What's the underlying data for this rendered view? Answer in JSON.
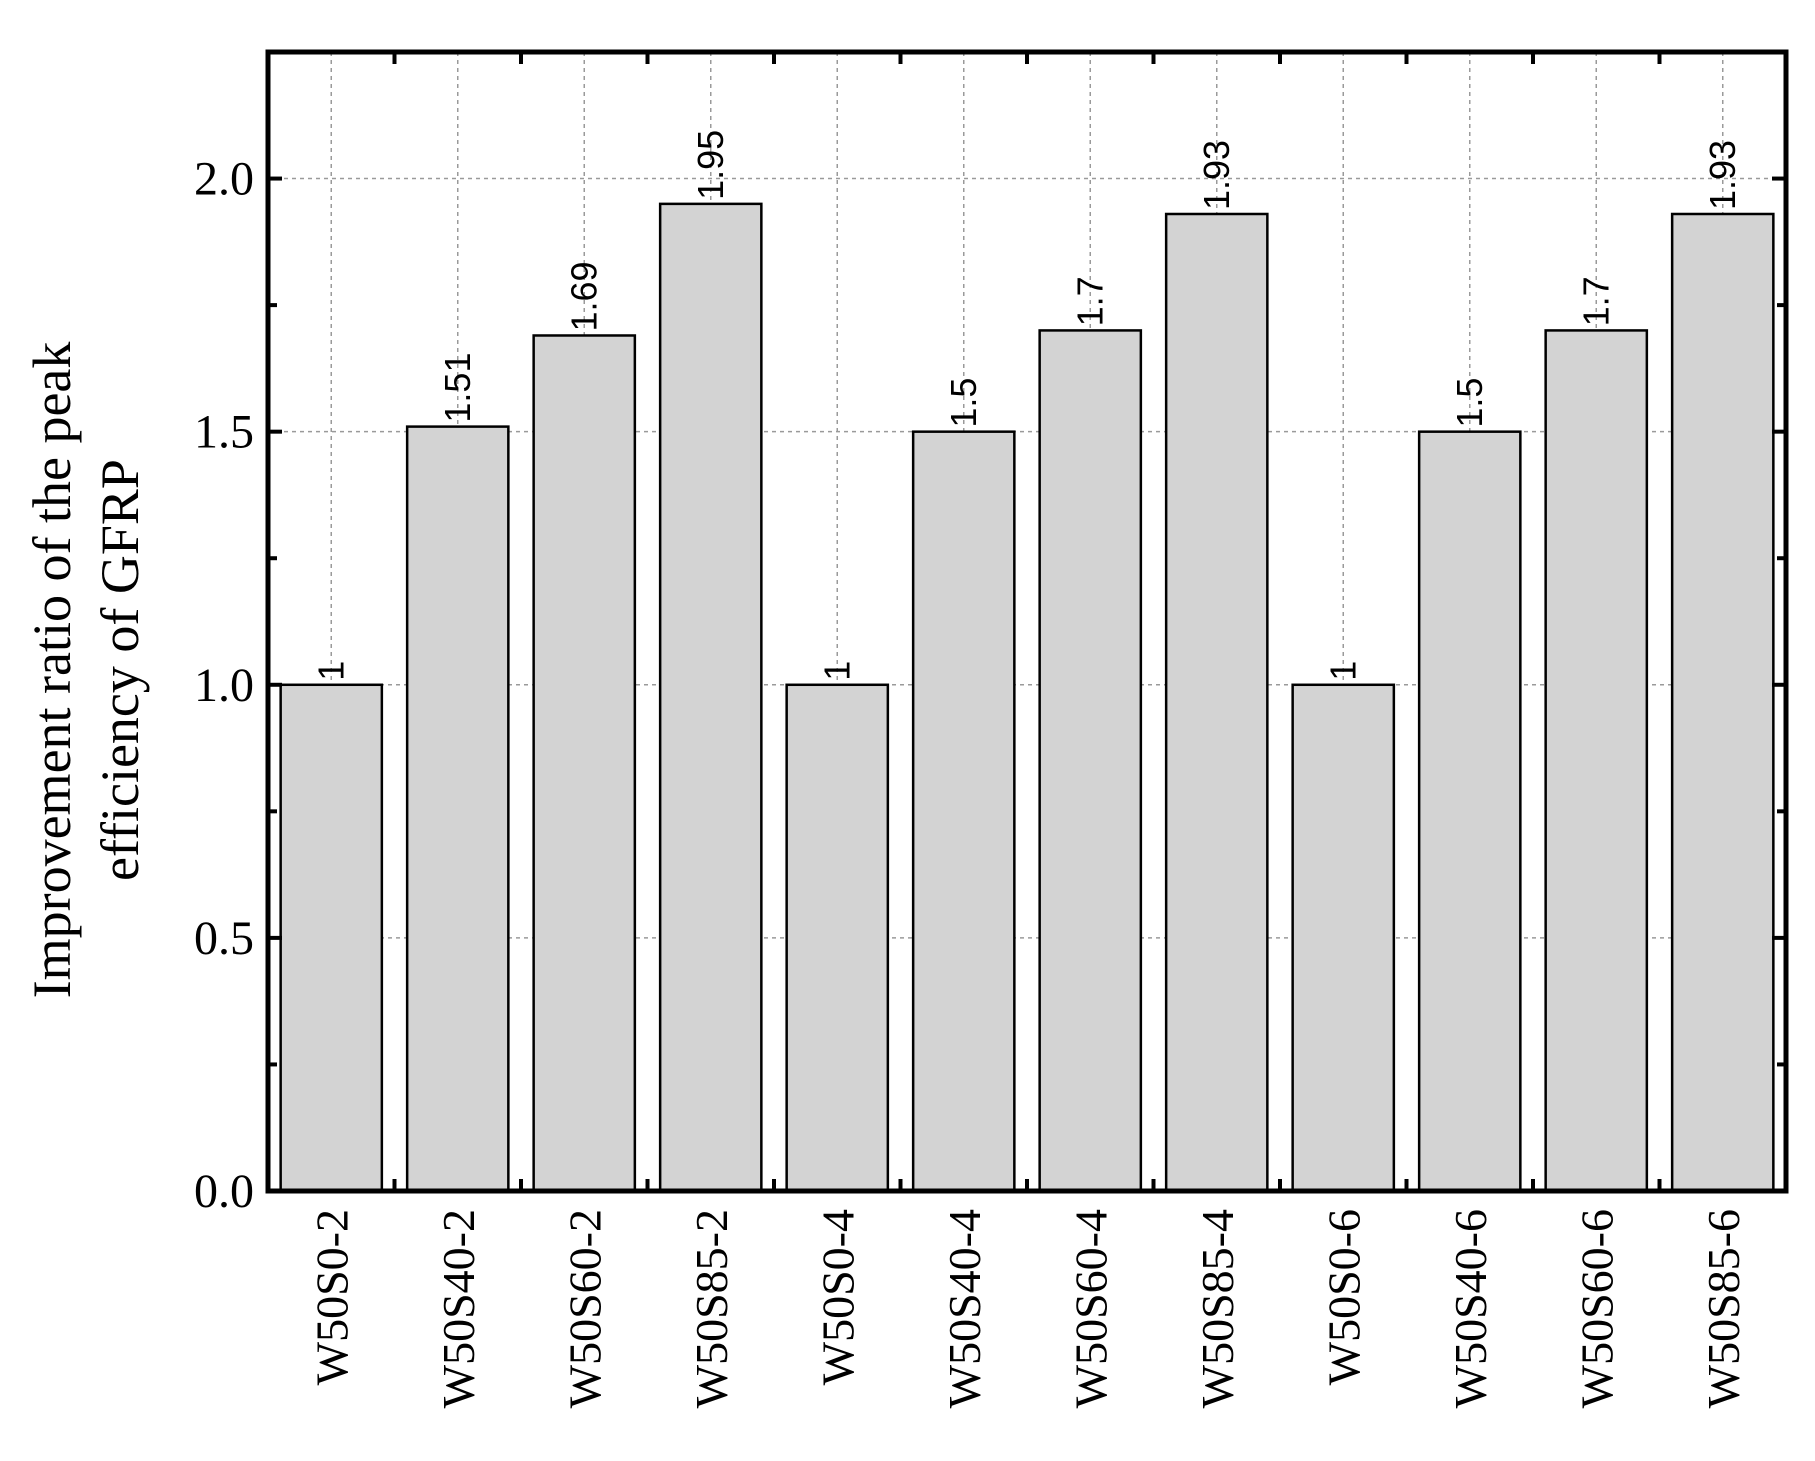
{
  "chart_data": {
    "type": "bar",
    "ylabel_lines": [
      "Improvement ratio of the peak",
      "efficiency of GFRP"
    ],
    "categories": [
      "W50S0-2",
      "W50S40-2",
      "W50S60-2",
      "W50S85-2",
      "W50S0-4",
      "W50S40-4",
      "W50S60-4",
      "W50S85-4",
      "W50S0-6",
      "W50S40-6",
      "W50S60-6",
      "W50S85-6"
    ],
    "values": [
      1,
      1.51,
      1.69,
      1.95,
      1,
      1.5,
      1.7,
      1.93,
      1,
      1.5,
      1.7,
      1.93
    ],
    "value_labels": [
      "1",
      "1.51",
      "1.69",
      "1.95",
      "1",
      "1.5",
      "1.7",
      "1.93",
      "1",
      "1.5",
      "1.7",
      "1.93"
    ],
    "ylim": [
      0,
      2.25
    ],
    "yticks": [
      0.0,
      0.5,
      1.0,
      1.5,
      2.0
    ],
    "ytick_labels": [
      "0.0",
      "0.5",
      "1.0",
      "1.5",
      "2.0"
    ],
    "grid": true,
    "bar_color": "#d3d3d3"
  }
}
